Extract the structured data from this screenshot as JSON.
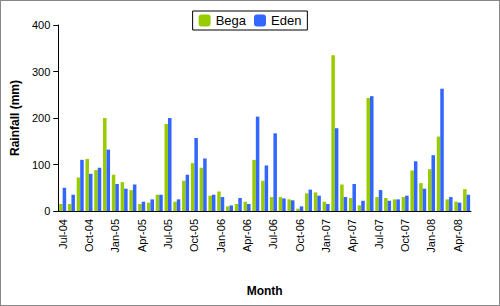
{
  "chart_data": {
    "type": "bar",
    "x_label": "Month",
    "y_label": "Rainfall (mm)",
    "categories": [
      "Jul-04",
      null,
      null,
      "Oct-04",
      null,
      null,
      "Jan-05",
      null,
      null,
      "Apr-05",
      null,
      null,
      "Jul-05",
      null,
      null,
      "Oct-05",
      null,
      null,
      "Jan-06",
      null,
      null,
      "Apr-06",
      null,
      null,
      "Jul-06",
      null,
      null,
      "Oct-06",
      null,
      null,
      "Jan-07",
      null,
      null,
      "Apr-07",
      null,
      null,
      "Jul-07",
      null,
      null,
      "Oct-07",
      null,
      null,
      "Jan-08",
      null,
      null,
      "Apr-08",
      null
    ],
    "series": [
      {
        "name": "Bega",
        "color": "#99cc00",
        "values": [
          15,
          15,
          72,
          112,
          88,
          200,
          78,
          62,
          45,
          15,
          18,
          35,
          187,
          20,
          65,
          103,
          93,
          33,
          42,
          10,
          15,
          20,
          110,
          65,
          30,
          30,
          25,
          5,
          38,
          40,
          20,
          335,
          57,
          28,
          12,
          243,
          30,
          28,
          25,
          30,
          87,
          60,
          90,
          160,
          25,
          20,
          47
        ]
      },
      {
        "name": "Eden",
        "color": "#3366ff",
        "values": [
          50,
          35,
          110,
          80,
          93,
          132,
          58,
          48,
          57,
          20,
          25,
          35,
          200,
          25,
          78,
          157,
          113,
          35,
          30,
          12,
          28,
          15,
          203,
          98,
          167,
          27,
          23,
          10,
          46,
          33,
          15,
          178,
          30,
          58,
          22,
          247,
          45,
          22,
          25,
          33,
          107,
          48,
          120,
          263,
          30,
          18,
          35
        ]
      }
    ],
    "ylim": [
      0,
      400
    ],
    "yticks": [
      0,
      100,
      200,
      300,
      400
    ],
    "grid": false,
    "legend": "top"
  }
}
